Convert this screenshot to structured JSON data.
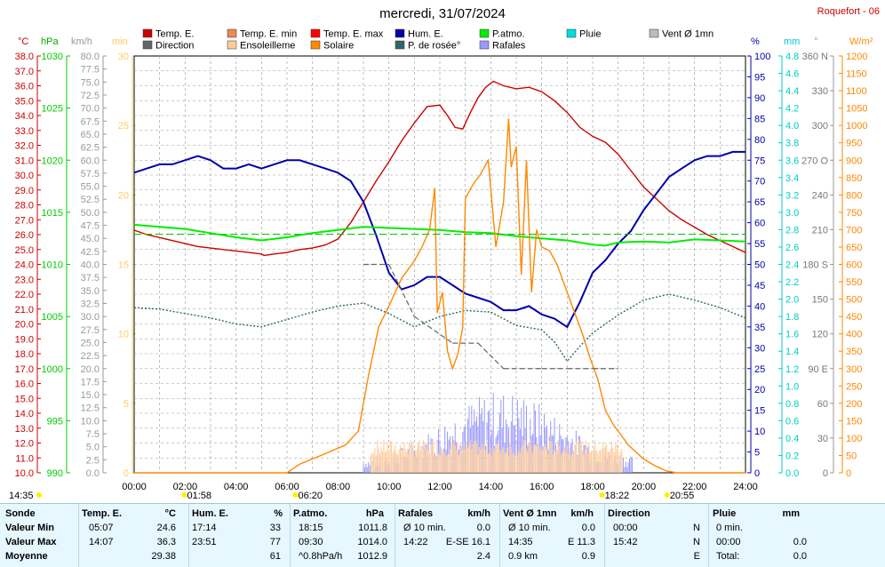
{
  "header": {
    "title": "mercredi, 31/07/2024",
    "location": "Roquefort - 06"
  },
  "legend": [
    {
      "label": "Temp. E.",
      "color": "#cc0000"
    },
    {
      "label": "Temp. E. min",
      "color": "#ee8855"
    },
    {
      "label": "Temp. E. max",
      "color": "#ff0000"
    },
    {
      "label": "Hum. E.",
      "color": "#0000aa"
    },
    {
      "label": "P.atmo.",
      "color": "#00ee00"
    },
    {
      "label": "Pluie",
      "color": "#00dddd"
    },
    {
      "label": "Vent Ø 1mn",
      "color": "#bbbbbb"
    },
    {
      "label": "Direction",
      "color": "#666666"
    },
    {
      "label": "Ensoleilleme",
      "color": "#ffcc99"
    },
    {
      "label": "Solaire",
      "color": "#ff8800"
    },
    {
      "label": "P. de rosée°",
      "color": "#336666"
    },
    {
      "label": "Rafales",
      "color": "#9999ff"
    }
  ],
  "axis_units": {
    "temp": "°C",
    "press": "hPa",
    "wind": "km/h",
    "sun": "min",
    "hum": "%",
    "rain": "mm",
    "dir": "°",
    "solar": "W/m²"
  },
  "chart_data": {
    "type": "line",
    "x_ticks": [
      "00:00",
      "02:00",
      "04:00",
      "06:00",
      "08:00",
      "10:00",
      "12:00",
      "14:00",
      "16:00",
      "18:00",
      "20:00",
      "22:00",
      "24:00"
    ],
    "axes": {
      "temp": {
        "min": 10.0,
        "max": 38.0,
        "step": 1.0
      },
      "press": {
        "min": 990,
        "max": 1030,
        "step": 5
      },
      "wind": {
        "min": 0.0,
        "max": 80.0,
        "step": 2.5
      },
      "sun": {
        "min": 0,
        "max": 30,
        "step": 5
      },
      "hum": {
        "min": 0,
        "max": 100,
        "step": 5
      },
      "rain": {
        "min": 0.0,
        "max": 4.8,
        "step": 0.2
      },
      "dir": {
        "ticks": [
          {
            "v": 0,
            "l": "0"
          },
          {
            "v": 30,
            "l": "30"
          },
          {
            "v": 60,
            "l": "60"
          },
          {
            "v": 90,
            "l": "90 E"
          },
          {
            "v": 120,
            "l": "120"
          },
          {
            "v": 150,
            "l": "150"
          },
          {
            "v": 180,
            "l": "180 S"
          },
          {
            "v": 210,
            "l": "210"
          },
          {
            "v": 240,
            "l": "240"
          },
          {
            "v": 270,
            "l": "270 O"
          },
          {
            "v": 300,
            "l": "300"
          },
          {
            "v": 330,
            "l": "330"
          },
          {
            "v": 360,
            "l": "360 N"
          }
        ],
        "min": 0,
        "max": 360
      },
      "solar": {
        "min": 0,
        "max": 1200,
        "step": 50
      }
    },
    "series": [
      {
        "name": "Temp. E.",
        "axis": "temp",
        "color": "#cc0000",
        "points": [
          [
            0,
            26.3
          ],
          [
            0.5,
            26.0
          ],
          [
            1,
            25.8
          ],
          [
            1.5,
            25.6
          ],
          [
            2,
            25.4
          ],
          [
            2.5,
            25.2
          ],
          [
            3,
            25.1
          ],
          [
            3.5,
            25.0
          ],
          [
            4,
            24.9
          ],
          [
            4.5,
            24.8
          ],
          [
            5,
            24.7
          ],
          [
            5.1,
            24.6
          ],
          [
            5.5,
            24.7
          ],
          [
            6,
            24.8
          ],
          [
            6.5,
            25.0
          ],
          [
            7,
            25.1
          ],
          [
            7.5,
            25.3
          ],
          [
            8,
            25.7
          ],
          [
            8.5,
            26.8
          ],
          [
            9,
            28.2
          ],
          [
            9.5,
            29.6
          ],
          [
            10,
            30.9
          ],
          [
            10.5,
            32.3
          ],
          [
            11,
            33.5
          ],
          [
            11.5,
            34.6
          ],
          [
            12,
            34.7
          ],
          [
            12.3,
            34.0
          ],
          [
            12.6,
            33.2
          ],
          [
            12.9,
            33.1
          ],
          [
            13.2,
            34.2
          ],
          [
            13.5,
            35.2
          ],
          [
            13.8,
            35.9
          ],
          [
            14.1,
            36.3
          ],
          [
            14.5,
            36.0
          ],
          [
            15,
            35.8
          ],
          [
            15.5,
            35.9
          ],
          [
            16,
            35.6
          ],
          [
            16.5,
            35.0
          ],
          [
            17,
            34.2
          ],
          [
            17.5,
            33.2
          ],
          [
            18,
            32.6
          ],
          [
            18.5,
            32.2
          ],
          [
            19,
            31.4
          ],
          [
            19.5,
            30.3
          ],
          [
            20,
            29.2
          ],
          [
            20.5,
            28.4
          ],
          [
            21,
            27.6
          ],
          [
            21.5,
            27.0
          ],
          [
            22,
            26.5
          ],
          [
            22.5,
            26.0
          ],
          [
            23,
            25.6
          ],
          [
            23.5,
            25.2
          ],
          [
            24,
            24.8
          ]
        ]
      },
      {
        "name": "Hum. E.",
        "axis": "hum",
        "color": "#0000aa",
        "points": [
          [
            0,
            72
          ],
          [
            0.5,
            73
          ],
          [
            1,
            74
          ],
          [
            1.5,
            74
          ],
          [
            2,
            75
          ],
          [
            2.5,
            76
          ],
          [
            3,
            75
          ],
          [
            3.5,
            73
          ],
          [
            4,
            73
          ],
          [
            4.5,
            74
          ],
          [
            5,
            73
          ],
          [
            5.5,
            74
          ],
          [
            6,
            75
          ],
          [
            6.5,
            75
          ],
          [
            7,
            74
          ],
          [
            7.5,
            73
          ],
          [
            8,
            72
          ],
          [
            8.5,
            70
          ],
          [
            9,
            65
          ],
          [
            9.5,
            57
          ],
          [
            10,
            48
          ],
          [
            10.5,
            44
          ],
          [
            11,
            45
          ],
          [
            11.5,
            47
          ],
          [
            12,
            47
          ],
          [
            12.5,
            45
          ],
          [
            13,
            43
          ],
          [
            13.5,
            42
          ],
          [
            14,
            41
          ],
          [
            14.5,
            39
          ],
          [
            15,
            39
          ],
          [
            15.5,
            40
          ],
          [
            16,
            38
          ],
          [
            16.5,
            37
          ],
          [
            17,
            35
          ],
          [
            17.5,
            41
          ],
          [
            18,
            48
          ],
          [
            18.5,
            51
          ],
          [
            19,
            55
          ],
          [
            19.5,
            58
          ],
          [
            20,
            63
          ],
          [
            20.5,
            67
          ],
          [
            21,
            71
          ],
          [
            21.5,
            73
          ],
          [
            22,
            75
          ],
          [
            22.5,
            76
          ],
          [
            23,
            76
          ],
          [
            23.5,
            77
          ],
          [
            24,
            77
          ]
        ]
      },
      {
        "name": "P.atmo.",
        "axis": "press",
        "color": "#00ee00",
        "points": [
          [
            0,
            1013.8
          ],
          [
            1,
            1013.6
          ],
          [
            2,
            1013.4
          ],
          [
            3,
            1013.0
          ],
          [
            4,
            1012.6
          ],
          [
            5,
            1012.3
          ],
          [
            6,
            1012.6
          ],
          [
            7,
            1013.0
          ],
          [
            8,
            1013.3
          ],
          [
            9,
            1013.6
          ],
          [
            10,
            1013.5
          ],
          [
            11,
            1013.4
          ],
          [
            12,
            1013.3
          ],
          [
            13,
            1013.1
          ],
          [
            14,
            1013.0
          ],
          [
            15,
            1012.7
          ],
          [
            16,
            1012.5
          ],
          [
            17,
            1012.3
          ],
          [
            18,
            1011.9
          ],
          [
            18.5,
            1011.8
          ],
          [
            19,
            1012.1
          ],
          [
            20,
            1012.2
          ],
          [
            21,
            1012.1
          ],
          [
            22,
            1012.4
          ],
          [
            23,
            1012.3
          ],
          [
            24,
            1012.2
          ]
        ]
      },
      {
        "name": "P. de rosée°",
        "axis": "temp",
        "color": "#336666",
        "dashed": true,
        "points": [
          [
            0,
            21.1
          ],
          [
            1,
            21.0
          ],
          [
            2,
            20.7
          ],
          [
            3,
            20.4
          ],
          [
            4,
            20.0
          ],
          [
            5,
            19.8
          ],
          [
            6,
            20.3
          ],
          [
            7,
            20.8
          ],
          [
            8,
            21.2
          ],
          [
            9,
            21.4
          ],
          [
            10,
            20.7
          ],
          [
            11,
            19.8
          ],
          [
            12,
            20.5
          ],
          [
            13,
            20.9
          ],
          [
            14,
            20.8
          ],
          [
            15,
            19.9
          ],
          [
            16,
            19.6
          ],
          [
            16.5,
            18.8
          ],
          [
            17,
            17.5
          ],
          [
            17.5,
            18.5
          ],
          [
            18,
            19.4
          ],
          [
            19,
            20.6
          ],
          [
            20,
            21.6
          ],
          [
            21,
            22.0
          ],
          [
            22,
            21.6
          ],
          [
            23,
            21.1
          ],
          [
            24,
            20.4
          ]
        ]
      },
      {
        "name": "Solaire",
        "axis": "solar",
        "color": "#ff8800",
        "points": [
          [
            0,
            0
          ],
          [
            6,
            0
          ],
          [
            6.5,
            25
          ],
          [
            7.5,
            55
          ],
          [
            8.3,
            80
          ],
          [
            8.8,
            120
          ],
          [
            9.2,
            280
          ],
          [
            9.6,
            420
          ],
          [
            10,
            480
          ],
          [
            10.5,
            560
          ],
          [
            11,
            610
          ],
          [
            11.3,
            650
          ],
          [
            11.6,
            700
          ],
          [
            11.8,
            820
          ],
          [
            11.9,
            460
          ],
          [
            12.1,
            520
          ],
          [
            12.3,
            350
          ],
          [
            12.5,
            300
          ],
          [
            12.7,
            340
          ],
          [
            12.9,
            420
          ],
          [
            13.0,
            790
          ],
          [
            13.3,
            830
          ],
          [
            13.6,
            860
          ],
          [
            13.9,
            900
          ],
          [
            14.2,
            650
          ],
          [
            14.5,
            780
          ],
          [
            14.7,
            1020
          ],
          [
            14.8,
            880
          ],
          [
            15,
            940
          ],
          [
            15.2,
            570
          ],
          [
            15.4,
            900
          ],
          [
            15.6,
            520
          ],
          [
            15.8,
            700
          ],
          [
            16,
            650
          ],
          [
            16.3,
            640
          ],
          [
            16.6,
            600
          ],
          [
            17,
            520
          ],
          [
            17.3,
            460
          ],
          [
            17.6,
            400
          ],
          [
            17.9,
            330
          ],
          [
            18.2,
            270
          ],
          [
            18.5,
            180
          ],
          [
            18.8,
            140
          ],
          [
            19.1,
            110
          ],
          [
            19.4,
            80
          ],
          [
            19.7,
            60
          ],
          [
            20,
            40
          ],
          [
            20.4,
            22
          ],
          [
            20.9,
            5
          ],
          [
            21.3,
            0
          ],
          [
            24,
            0
          ]
        ]
      },
      {
        "name": "Rafales",
        "axis": "wind",
        "color": "#9999ff",
        "bars_from": 9.0,
        "bars_to": 19.6
      },
      {
        "name": "Direction",
        "axis": "dir",
        "color": "#666666",
        "points": [
          [
            9.0,
            180
          ],
          [
            10.0,
            180
          ],
          [
            11.0,
            135
          ],
          [
            12.5,
            112
          ],
          [
            13.5,
            112
          ],
          [
            14.5,
            90
          ],
          [
            16,
            90
          ],
          [
            17,
            90
          ],
          [
            18,
            90
          ],
          [
            19.0,
            90
          ]
        ]
      }
    ]
  },
  "time_marks": [
    {
      "label": "14:35",
      "t": -0.2
    },
    {
      "label": "01:58",
      "t": 1.97
    },
    {
      "label": "06:20",
      "t": 6.33
    },
    {
      "label": "18:22",
      "t": 18.37
    },
    {
      "label": "20:55",
      "t": 20.92
    }
  ],
  "table": {
    "headers": [
      "Sonde",
      "Temp. E.",
      "°C",
      "Hum. E.",
      "%",
      "P.atmo.",
      "hPa",
      "Rafales",
      "km/h",
      "Vent Ø 1mn",
      "km/h",
      "Direction",
      "Pluie",
      "mm"
    ],
    "rows": [
      {
        "label": "Valeur Min",
        "c": [
          "05:07",
          "24.6",
          "17:14",
          "33",
          "18:15",
          "1011.8",
          "Ø 10 min.",
          "0.0",
          "Ø 10 min.",
          "0.0",
          "00:00",
          "N",
          "0 min.",
          ""
        ]
      },
      {
        "label": "Valeur Max",
        "c": [
          "14:07",
          "36.3",
          "23:51",
          "77",
          "09:30",
          "1014.0",
          "14:22",
          "E-SE 16.1",
          "14:35",
          "E 11.3",
          "15:42",
          "N",
          "00:00",
          "0.0"
        ]
      },
      {
        "label": "Moyenne",
        "c": [
          "",
          "29.38",
          "",
          "61",
          "^0.8hPa/h",
          "1012.9",
          "",
          "2.4",
          "0.9 km",
          "0.9",
          "",
          "E",
          "Total:",
          "0.0"
        ]
      }
    ]
  }
}
